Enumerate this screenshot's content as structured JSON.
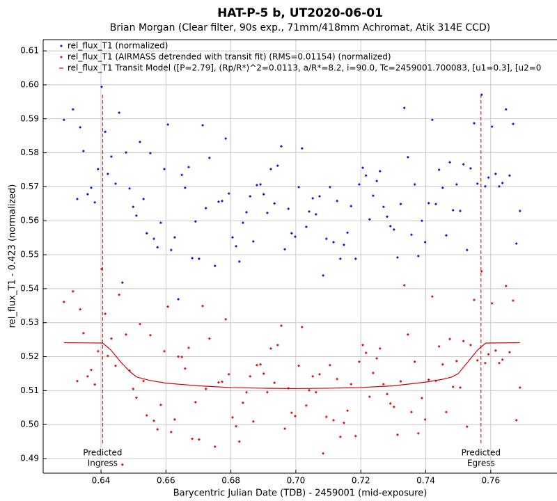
{
  "chart_data": {
    "type": "scatter",
    "title": "HAT-P-5 b, UT2020-06-01",
    "subtitle": "Brian Morgan (Clear filter, 90s exp., 71mm/418mm Achromat, Atik 314E CCD)",
    "xlabel": "Barycentric Julian Date (TDB) - 2459001 (mid-exposure)",
    "ylabel": "rel_flux_T1 - 0.423 (normalized)",
    "xlim": [
      0.6222,
      0.7804
    ],
    "ylim": [
      0.4857,
      0.6133
    ],
    "xticks": [
      0.64,
      0.66,
      0.68,
      {
        "value": 0.7,
        "label": "0.70"
      },
      0.72,
      0.74,
      0.76
    ],
    "yticks": [
      0.49,
      {
        "value": 0.5,
        "label": "0.50"
      },
      0.51,
      0.52,
      0.53,
      0.54,
      0.55,
      0.56,
      0.57,
      0.58,
      0.59,
      {
        "value": 0.6,
        "label": "0.60"
      },
      0.61
    ],
    "grid": true,
    "legend": "top-left",
    "series": [
      {
        "name": "rel_flux_T1 (normalized)",
        "color": "#1414e6",
        "style": "points",
        "x": [
          0.6286,
          0.6314,
          0.6327,
          0.6336,
          0.6346,
          0.6359,
          0.637,
          0.6381,
          0.6391,
          0.6402,
          0.6413,
          0.6421,
          0.6432,
          0.6445,
          0.6456,
          0.6466,
          0.6477,
          0.6488,
          0.6499,
          0.6509,
          0.652,
          0.6531,
          0.6541,
          0.6552,
          0.6563,
          0.6574,
          0.6584,
          0.6595,
          0.6606,
          0.6616,
          0.6627,
          0.6638,
          0.6649,
          0.6659,
          0.667,
          0.6681,
          0.6691,
          0.6702,
          0.6713,
          0.6723,
          0.6734,
          0.6751,
          0.6762,
          0.6773,
          0.6784,
          0.6794,
          0.6805,
          0.6816,
          0.6826,
          0.6837,
          0.6848,
          0.6859,
          0.6869,
          0.688,
          0.6891,
          0.6901,
          0.6912,
          0.6923,
          0.6934,
          0.6944,
          0.6955,
          0.6966,
          0.6977,
          0.6987,
          0.6998,
          0.7009,
          0.7019,
          0.7032,
          0.7041,
          0.7052,
          0.7062,
          0.7073,
          0.7084,
          0.7094,
          0.7105,
          0.7116,
          0.7127,
          0.7137,
          0.7148,
          0.7159,
          0.717,
          0.7184,
          0.7195,
          0.7206,
          0.7216,
          0.7227,
          0.7238,
          0.7249,
          0.7259,
          0.727,
          0.7281,
          0.7291,
          0.7302,
          0.7313,
          0.7323,
          0.7334,
          0.7345,
          0.7356,
          0.7366,
          0.7377,
          0.7388,
          0.7398,
          0.7409,
          0.742,
          0.7431,
          0.7441,
          0.7452,
          0.7463,
          0.7474,
          0.7484,
          0.7495,
          0.7506,
          0.7516,
          0.7527,
          0.7538,
          0.7549,
          0.7559,
          0.7572,
          0.7583,
          0.7593,
          0.7604,
          0.7615,
          0.7626,
          0.7636,
          0.7647,
          0.7658,
          0.7669,
          0.7679,
          0.769
        ],
        "values": [
          0.5897,
          0.5928,
          0.5664,
          0.5875,
          0.5805,
          0.5678,
          0.5697,
          0.5654,
          0.5752,
          0.5994,
          0.5862,
          0.5738,
          0.5789,
          0.5709,
          0.5918,
          0.5418,
          0.5801,
          0.5695,
          0.5641,
          0.5615,
          0.5832,
          0.5664,
          0.5563,
          0.5799,
          0.5547,
          0.5522,
          0.5594,
          0.5752,
          0.5883,
          0.5514,
          0.5551,
          0.5369,
          0.5735,
          0.5697,
          0.5758,
          0.549,
          0.5598,
          0.5488,
          0.5881,
          0.5637,
          0.5785,
          0.5467,
          0.5656,
          0.5658,
          0.5842,
          0.568,
          0.5551,
          0.5525,
          0.548,
          0.5594,
          0.5625,
          0.5672,
          0.5539,
          0.5705,
          0.5707,
          0.5678,
          0.5623,
          0.5752,
          0.5651,
          0.5762,
          0.5819,
          0.5516,
          0.5635,
          0.5563,
          0.5553,
          0.5699,
          0.5813,
          0.5582,
          0.5627,
          0.5666,
          0.5619,
          0.5672,
          0.5439,
          0.5547,
          0.5699,
          0.5537,
          0.5658,
          0.5488,
          0.5529,
          0.5565,
          0.5643,
          0.5488,
          0.5707,
          0.5756,
          0.5733,
          0.5604,
          0.5674,
          0.5717,
          0.5746,
          0.5641,
          0.5612,
          0.5584,
          0.5574,
          0.5492,
          0.5649,
          0.5932,
          0.5787,
          0.5559,
          0.5707,
          0.5496,
          0.56,
          0.5537,
          0.5652,
          0.5897,
          0.5649,
          0.575,
          0.5697,
          0.5557,
          0.5772,
          0.5631,
          0.5707,
          0.5629,
          0.5766,
          0.5514,
          0.5754,
          0.5887,
          0.5709,
          0.5971,
          0.5701,
          0.5727,
          0.5877,
          0.5738,
          0.5701,
          0.5711,
          0.5928,
          0.5733,
          0.5885,
          0.5533,
          0.5629
        ]
      },
      {
        "name": "rel_flux_T1 (AIRMASS detrended with transit fit) (RMS=0.01154) (normalized)",
        "color": "#e01414",
        "style": "points",
        "x": [
          0.6286,
          0.6314,
          0.6327,
          0.6336,
          0.6346,
          0.6359,
          0.637,
          0.6381,
          0.6391,
          0.6402,
          0.6413,
          0.6421,
          0.6432,
          0.6445,
          0.6456,
          0.6466,
          0.6477,
          0.6488,
          0.6499,
          0.6509,
          0.652,
          0.6531,
          0.6541,
          0.6552,
          0.6563,
          0.6574,
          0.6584,
          0.6595,
          0.6606,
          0.6616,
          0.6627,
          0.6638,
          0.6649,
          0.6659,
          0.667,
          0.6681,
          0.6691,
          0.6702,
          0.6713,
          0.6723,
          0.6734,
          0.6751,
          0.6762,
          0.6773,
          0.6784,
          0.6794,
          0.6805,
          0.6816,
          0.6826,
          0.6837,
          0.6848,
          0.6859,
          0.6869,
          0.688,
          0.6891,
          0.6901,
          0.6912,
          0.6923,
          0.6934,
          0.6944,
          0.6955,
          0.6966,
          0.6977,
          0.6987,
          0.6998,
          0.7009,
          0.7019,
          0.7032,
          0.7041,
          0.7052,
          0.7062,
          0.7073,
          0.7084,
          0.7094,
          0.7105,
          0.7116,
          0.7127,
          0.7137,
          0.7148,
          0.7159,
          0.717,
          0.7184,
          0.7195,
          0.7206,
          0.7216,
          0.7227,
          0.7238,
          0.7249,
          0.7259,
          0.727,
          0.7281,
          0.7291,
          0.7302,
          0.7313,
          0.7323,
          0.7334,
          0.7345,
          0.7356,
          0.7366,
          0.7377,
          0.7388,
          0.7398,
          0.7409,
          0.742,
          0.7431,
          0.7441,
          0.7452,
          0.7463,
          0.7474,
          0.7484,
          0.7495,
          0.7506,
          0.7516,
          0.7527,
          0.7538,
          0.7549,
          0.7559,
          0.7572,
          0.7583,
          0.7593,
          0.7604,
          0.7615,
          0.7626,
          0.7636,
          0.7647,
          0.7658,
          0.7669,
          0.7679,
          0.769
        ],
        "values": [
          0.5361,
          0.5392,
          0.5128,
          0.5339,
          0.5269,
          0.5142,
          0.5161,
          0.5118,
          0.5216,
          0.5458,
          0.5326,
          0.5202,
          0.5253,
          0.5173,
          0.5382,
          0.4882,
          0.5265,
          0.5159,
          0.5105,
          0.5079,
          0.5296,
          0.5128,
          0.5027,
          0.5263,
          0.5011,
          0.4986,
          0.5058,
          0.5216,
          0.5347,
          0.4978,
          0.5015,
          0.52,
          0.5199,
          0.5165,
          0.5226,
          0.4958,
          0.5066,
          0.4956,
          0.5349,
          0.5105,
          0.5253,
          0.4935,
          0.5124,
          0.5126,
          0.531,
          0.5148,
          0.5021,
          0.4995,
          0.495,
          0.5064,
          0.5095,
          0.5142,
          0.5009,
          0.5175,
          0.5177,
          0.515,
          0.5095,
          0.5224,
          0.5123,
          0.5234,
          0.5291,
          0.4988,
          0.5107,
          0.5035,
          0.5025,
          0.5173,
          0.5287,
          0.5056,
          0.5101,
          0.5142,
          0.5095,
          0.5148,
          0.4915,
          0.5023,
          0.5175,
          0.5013,
          0.5134,
          0.4964,
          0.5005,
          0.5041,
          0.5119,
          0.4966,
          0.5185,
          0.5234,
          0.5211,
          0.5082,
          0.5152,
          0.5195,
          0.5224,
          0.5119,
          0.509,
          0.5062,
          0.5052,
          0.497,
          0.5127,
          0.541,
          0.5265,
          0.5037,
          0.5185,
          0.4974,
          0.5078,
          0.5015,
          0.5132,
          0.5377,
          0.5129,
          0.523,
          0.5177,
          0.5037,
          0.5252,
          0.5111,
          0.5187,
          0.5109,
          0.5246,
          0.4994,
          0.5234,
          0.5367,
          0.5189,
          0.5451,
          0.5181,
          0.5207,
          0.5357,
          0.5218,
          0.5181,
          0.5191,
          0.5408,
          0.5213,
          0.5365,
          0.5013,
          0.5109
        ]
      },
      {
        "name": "rel_flux_T1 Transit Model ([P=2.79], (Rp/R*)^2=0.0113, a/R*=8.2, i=90.0, Tc=2459001.700083, [u1=0.3], [u2=0",
        "color": "#d00000",
        "style": "line",
        "x": [
          0.6286,
          0.6405,
          0.643,
          0.646,
          0.649,
          0.651,
          0.655,
          0.66,
          0.67,
          0.68,
          0.69,
          0.7,
          0.71,
          0.72,
          0.73,
          0.74,
          0.745,
          0.748,
          0.75,
          0.753,
          0.756,
          0.7585,
          0.769
        ],
        "values": [
          0.5241,
          0.524,
          0.522,
          0.5185,
          0.5155,
          0.514,
          0.513,
          0.5122,
          0.5114,
          0.5109,
          0.5107,
          0.5106,
          0.5107,
          0.5109,
          0.5114,
          0.5125,
          0.5133,
          0.514,
          0.515,
          0.5185,
          0.522,
          0.524,
          0.5241
        ]
      }
    ],
    "markers": [
      {
        "x": 0.6405,
        "lines": [
          "Predicted",
          "Ingress"
        ]
      },
      {
        "x": 0.757,
        "lines": [
          "Predicted",
          "Egress"
        ]
      }
    ]
  }
}
